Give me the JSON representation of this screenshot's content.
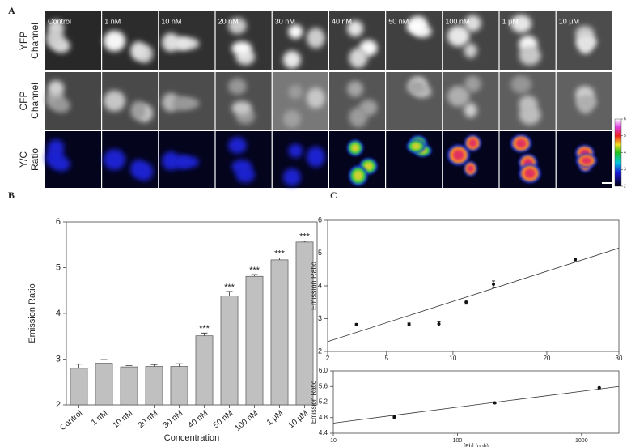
{
  "panel_labels": [
    "A",
    "B",
    "C"
  ],
  "image_panel": {
    "column_labels": [
      "Control",
      "1 nM",
      "10 nM",
      "20 nM",
      "30 nM",
      "40 nM",
      "50 nM",
      "100 nM",
      "1 μM",
      "10 μM"
    ],
    "row_labels": [
      [
        "YFP",
        "Channel"
      ],
      [
        "CFP",
        "Channel"
      ],
      [
        "Y/C",
        "Ratio"
      ]
    ],
    "colorbar": {
      "lim": [
        2,
        6
      ],
      "ticks": [
        2,
        3,
        4,
        5,
        6
      ]
    }
  },
  "chart_data": [
    {
      "type": "bar",
      "xlabel": "Concentration",
      "ylabel": "Emission Ratio",
      "categories": [
        "Control",
        "1 nM",
        "10 nM",
        "20 nM",
        "30 nM",
        "40 nM",
        "50 nM",
        "100 nM",
        "1 μM",
        "10 μM"
      ],
      "values": [
        2.8,
        2.91,
        2.83,
        2.84,
        2.84,
        3.51,
        4.38,
        4.81,
        5.17,
        5.56
      ],
      "errors": [
        0.09,
        0.08,
        0.03,
        0.04,
        0.06,
        0.06,
        0.1,
        0.04,
        0.04,
        0.02
      ],
      "value_annotations": [
        null,
        null,
        null,
        null,
        null,
        "***",
        "***",
        "***",
        "***",
        "***"
      ],
      "color": "#c0c0c0",
      "ylim": [
        2,
        6
      ],
      "yticks": [
        2,
        3,
        4,
        5,
        6
      ]
    },
    {
      "type": "scatter",
      "ylabel": "Emission Ratio",
      "xscale": "sqrt",
      "x": [
        3.3,
        6.5,
        8.8,
        11.2,
        13.9,
        23.7
      ],
      "values": [
        2.82,
        2.83,
        2.84,
        3.5,
        4.05,
        4.8
      ],
      "errors": [
        0.03,
        0.04,
        0.06,
        0.06,
        0.1,
        0.04
      ],
      "fit": {
        "x": [
          2,
          30
        ],
        "values": [
          2.3,
          5.15
        ]
      },
      "color": "#111111",
      "xlim": [
        2,
        30
      ],
      "xticks": [
        2,
        5,
        10,
        20,
        30
      ],
      "ylim": [
        2,
        6
      ],
      "yticks": [
        2,
        3,
        4,
        5,
        6
      ]
    },
    {
      "type": "scatter",
      "ylabel": "Emission Ratio",
      "xlabel": "[Pb] (ppb)",
      "xscale": "log",
      "x": [
        31,
        200,
        1390
      ],
      "values": [
        4.82,
        5.18,
        5.57
      ],
      "errors": [
        0.04,
        0.02,
        0.01
      ],
      "fit": {
        "x": [
          10,
          2000
        ],
        "values": [
          4.66,
          5.6
        ]
      },
      "color": "#111111",
      "xlim": [
        10,
        2000
      ],
      "xticks": [
        10,
        100,
        1000
      ],
      "ylim": [
        4.4,
        6.0
      ],
      "yticks": [
        4.4,
        4.8,
        5.2,
        5.6,
        {
          "value": 6.0,
          "label": "6.0"
        }
      ]
    }
  ]
}
